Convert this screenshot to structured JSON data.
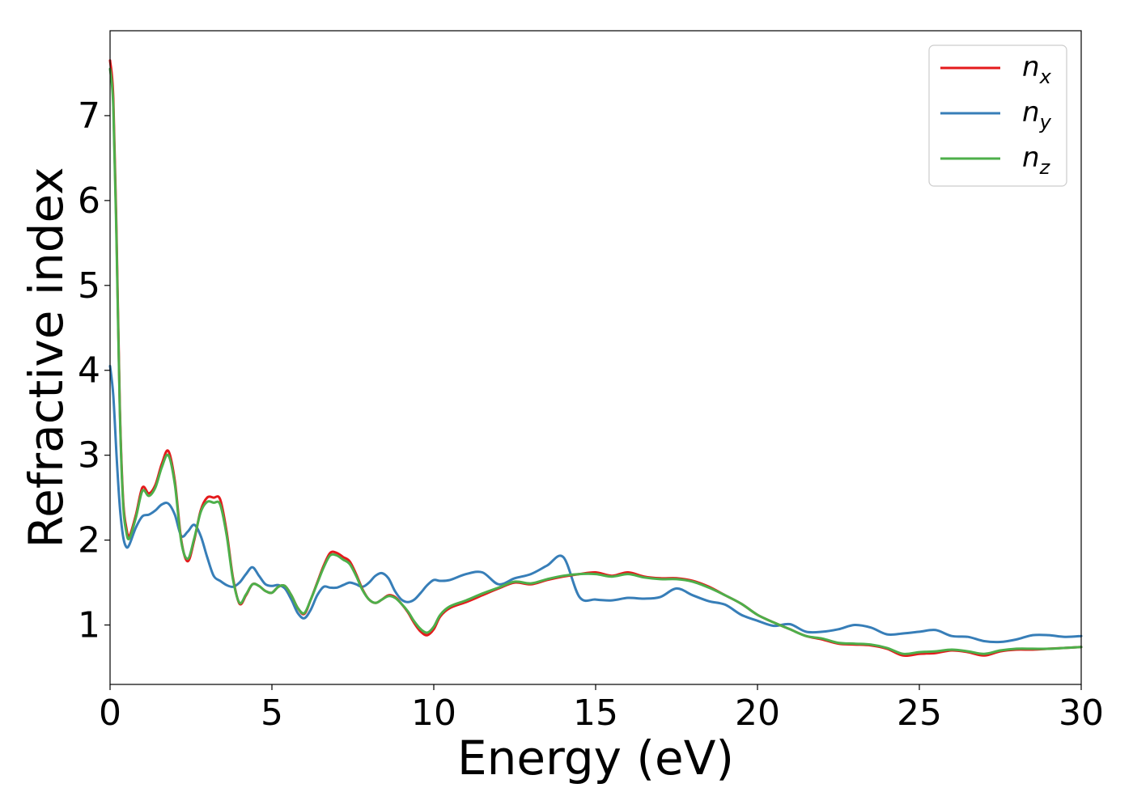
{
  "chart_data": {
    "type": "line",
    "title": "",
    "xlabel": "Energy (eV)",
    "ylabel": "Refractive index",
    "xlim": [
      0,
      30
    ],
    "ylim": [
      0.3,
      8.0
    ],
    "xticks": [
      0,
      5,
      10,
      15,
      20,
      25,
      30
    ],
    "xtick_labels": [
      "0",
      "5",
      "10",
      "15",
      "20",
      "25",
      "30"
    ],
    "yticks": [
      1,
      2,
      3,
      4,
      5,
      6,
      7
    ],
    "ytick_labels": [
      "1",
      "2",
      "3",
      "4",
      "5",
      "6",
      "7"
    ],
    "grid": false,
    "legend_position": "top-right",
    "series": [
      {
        "name": "n_x",
        "label_base": "n",
        "label_sub": "x",
        "color": "#e41a1c",
        "x": [
          0,
          0.1,
          0.2,
          0.3,
          0.4,
          0.5,
          0.6,
          0.8,
          1.0,
          1.2,
          1.4,
          1.6,
          1.8,
          2.0,
          2.2,
          2.4,
          2.6,
          2.8,
          3.0,
          3.2,
          3.4,
          3.6,
          3.8,
          4.0,
          4.2,
          4.4,
          4.6,
          4.8,
          5.0,
          5.2,
          5.4,
          5.6,
          5.8,
          6.0,
          6.2,
          6.4,
          6.6,
          6.8,
          7.0,
          7.2,
          7.4,
          7.6,
          7.8,
          8.0,
          8.2,
          8.4,
          8.6,
          8.8,
          9.0,
          9.2,
          9.4,
          9.6,
          9.8,
          10.0,
          10.2,
          10.5,
          11.0,
          11.5,
          12.0,
          12.5,
          13.0,
          13.5,
          14.0,
          14.5,
          15.0,
          15.5,
          16.0,
          16.5,
          17.0,
          17.5,
          18.0,
          18.5,
          19.0,
          19.5,
          20.0,
          20.5,
          21.0,
          21.5,
          22.0,
          22.5,
          23.0,
          23.5,
          24.0,
          24.5,
          25.0,
          25.5,
          26.0,
          26.5,
          27.0,
          27.5,
          28.0,
          28.5,
          29.0,
          29.5,
          30.0
        ],
        "y": [
          7.65,
          7.2,
          5.6,
          3.6,
          2.5,
          2.15,
          2.05,
          2.3,
          2.62,
          2.55,
          2.65,
          2.9,
          3.05,
          2.7,
          2.0,
          1.75,
          2.0,
          2.35,
          2.5,
          2.5,
          2.48,
          2.1,
          1.55,
          1.25,
          1.35,
          1.48,
          1.46,
          1.4,
          1.38,
          1.45,
          1.46,
          1.35,
          1.2,
          1.13,
          1.3,
          1.5,
          1.7,
          1.85,
          1.85,
          1.8,
          1.75,
          1.6,
          1.42,
          1.3,
          1.26,
          1.3,
          1.35,
          1.33,
          1.25,
          1.15,
          1.02,
          0.92,
          0.88,
          0.95,
          1.1,
          1.2,
          1.27,
          1.35,
          1.43,
          1.5,
          1.48,
          1.53,
          1.57,
          1.6,
          1.62,
          1.58,
          1.62,
          1.57,
          1.55,
          1.55,
          1.52,
          1.45,
          1.35,
          1.25,
          1.12,
          1.03,
          0.95,
          0.87,
          0.83,
          0.78,
          0.77,
          0.76,
          0.72,
          0.64,
          0.66,
          0.67,
          0.7,
          0.68,
          0.64,
          0.69,
          0.71,
          0.71,
          0.72,
          0.73,
          0.74
        ]
      },
      {
        "name": "n_y",
        "label_base": "n",
        "label_sub": "y",
        "color": "#377eb8",
        "x": [
          0,
          0.1,
          0.2,
          0.3,
          0.4,
          0.5,
          0.6,
          0.8,
          1.0,
          1.2,
          1.4,
          1.6,
          1.8,
          2.0,
          2.2,
          2.4,
          2.6,
          2.8,
          3.0,
          3.2,
          3.4,
          3.6,
          3.8,
          4.0,
          4.2,
          4.4,
          4.6,
          4.8,
          5.0,
          5.2,
          5.4,
          5.6,
          5.8,
          6.0,
          6.2,
          6.4,
          6.6,
          6.8,
          7.0,
          7.2,
          7.4,
          7.6,
          7.8,
          8.0,
          8.2,
          8.4,
          8.6,
          8.8,
          9.0,
          9.2,
          9.4,
          9.6,
          9.8,
          10.0,
          10.2,
          10.5,
          11.0,
          11.5,
          12.0,
          12.5,
          13.0,
          13.5,
          14.0,
          14.5,
          15.0,
          15.5,
          16.0,
          16.5,
          17.0,
          17.5,
          18.0,
          18.5,
          19.0,
          19.5,
          20.0,
          20.5,
          21.0,
          21.5,
          22.0,
          22.5,
          23.0,
          23.5,
          24.0,
          24.5,
          25.0,
          25.5,
          26.0,
          26.5,
          27.0,
          27.5,
          28.0,
          28.5,
          29.0,
          29.5,
          30.0
        ],
        "y": [
          4.05,
          3.7,
          3.0,
          2.4,
          2.05,
          1.92,
          1.95,
          2.15,
          2.28,
          2.3,
          2.35,
          2.42,
          2.43,
          2.3,
          2.05,
          2.1,
          2.18,
          2.05,
          1.8,
          1.58,
          1.52,
          1.47,
          1.45,
          1.5,
          1.6,
          1.68,
          1.58,
          1.48,
          1.46,
          1.47,
          1.43,
          1.3,
          1.14,
          1.08,
          1.18,
          1.35,
          1.45,
          1.44,
          1.44,
          1.47,
          1.5,
          1.48,
          1.45,
          1.5,
          1.58,
          1.61,
          1.55,
          1.4,
          1.3,
          1.27,
          1.3,
          1.38,
          1.47,
          1.53,
          1.52,
          1.53,
          1.6,
          1.62,
          1.48,
          1.55,
          1.6,
          1.7,
          1.8,
          1.33,
          1.3,
          1.29,
          1.32,
          1.31,
          1.33,
          1.43,
          1.35,
          1.28,
          1.24,
          1.12,
          1.05,
          0.99,
          1.01,
          0.92,
          0.92,
          0.95,
          1.0,
          0.97,
          0.89,
          0.9,
          0.92,
          0.94,
          0.87,
          0.86,
          0.81,
          0.8,
          0.83,
          0.88,
          0.88,
          0.86,
          0.87
        ]
      },
      {
        "name": "n_z",
        "label_base": "n",
        "label_sub": "z",
        "color": "#4daf4a",
        "x": [
          0,
          0.1,
          0.2,
          0.3,
          0.4,
          0.5,
          0.6,
          0.8,
          1.0,
          1.2,
          1.4,
          1.6,
          1.8,
          2.0,
          2.2,
          2.4,
          2.6,
          2.8,
          3.0,
          3.2,
          3.4,
          3.6,
          3.8,
          4.0,
          4.2,
          4.4,
          4.6,
          4.8,
          5.0,
          5.2,
          5.4,
          5.6,
          5.8,
          6.0,
          6.2,
          6.4,
          6.6,
          6.8,
          7.0,
          7.2,
          7.4,
          7.6,
          7.8,
          8.0,
          8.2,
          8.4,
          8.6,
          8.8,
          9.0,
          9.2,
          9.4,
          9.6,
          9.8,
          10.0,
          10.2,
          10.5,
          11.0,
          11.5,
          12.0,
          12.5,
          13.0,
          13.5,
          14.0,
          14.5,
          15.0,
          15.5,
          16.0,
          16.5,
          17.0,
          17.5,
          18.0,
          18.5,
          19.0,
          19.5,
          20.0,
          20.5,
          21.0,
          21.5,
          22.0,
          22.5,
          23.0,
          23.5,
          24.0,
          24.5,
          25.0,
          25.5,
          26.0,
          26.5,
          27.0,
          27.5,
          28.0,
          28.5,
          29.0,
          29.5,
          30.0
        ],
        "y": [
          7.55,
          7.1,
          5.5,
          3.55,
          2.45,
          2.1,
          2.02,
          2.27,
          2.58,
          2.52,
          2.62,
          2.86,
          3.0,
          2.66,
          1.98,
          1.78,
          2.02,
          2.33,
          2.45,
          2.44,
          2.42,
          2.06,
          1.53,
          1.26,
          1.36,
          1.48,
          1.46,
          1.4,
          1.38,
          1.45,
          1.46,
          1.35,
          1.2,
          1.14,
          1.3,
          1.49,
          1.68,
          1.82,
          1.82,
          1.77,
          1.72,
          1.58,
          1.41,
          1.3,
          1.26,
          1.3,
          1.34,
          1.32,
          1.25,
          1.16,
          1.04,
          0.95,
          0.91,
          0.98,
          1.12,
          1.22,
          1.29,
          1.37,
          1.44,
          1.51,
          1.49,
          1.54,
          1.58,
          1.6,
          1.6,
          1.57,
          1.6,
          1.56,
          1.54,
          1.54,
          1.51,
          1.44,
          1.35,
          1.25,
          1.12,
          1.03,
          0.95,
          0.87,
          0.84,
          0.79,
          0.78,
          0.77,
          0.73,
          0.66,
          0.68,
          0.69,
          0.71,
          0.69,
          0.66,
          0.7,
          0.72,
          0.72,
          0.72,
          0.73,
          0.74
        ]
      }
    ]
  }
}
